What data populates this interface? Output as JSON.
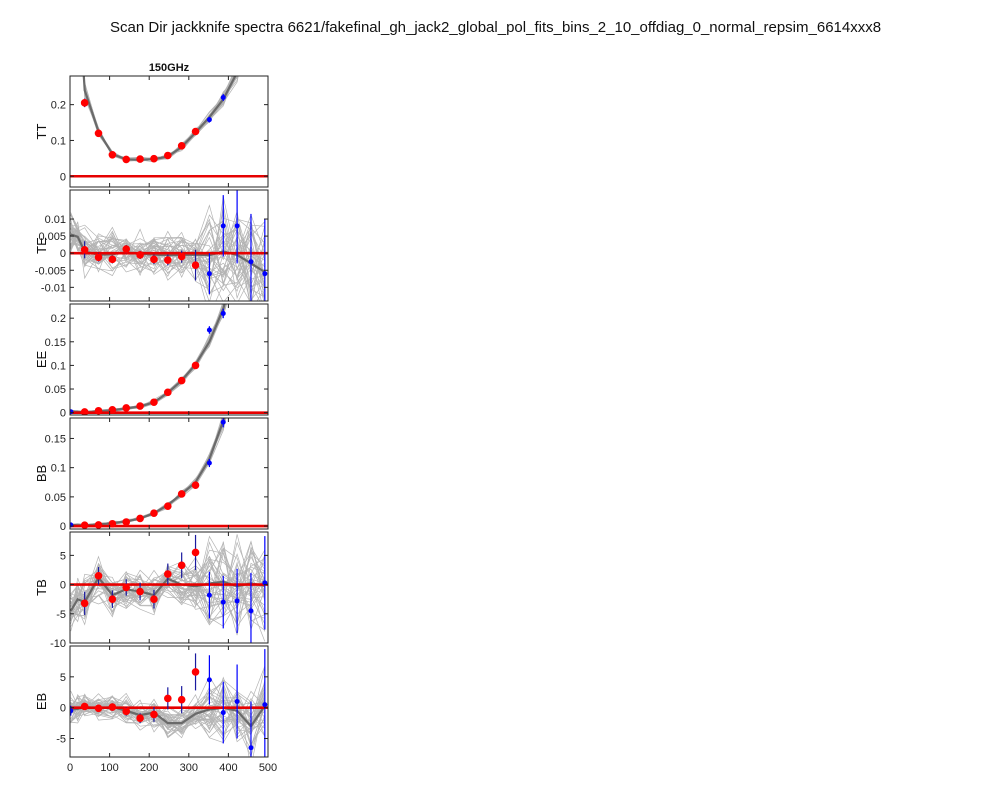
{
  "title": "Scan Dir jackknife spectra 6621/fakefinal_gh_jack2_global_pol_fits_bins_2_10_offdiag_0_normal_repsim_6614xxx8",
  "panel_title": "150GHz",
  "colors": {
    "sim_lines": "#b4b4b4",
    "sim_mean": "#6a6a6a",
    "zero_line": "#e60000",
    "data_in_range": "#ff0000",
    "data_out_range": "#0000ff"
  },
  "x_axis": {
    "xlim": [
      0,
      500
    ],
    "ticks": [
      0,
      100,
      200,
      300,
      400,
      500
    ]
  },
  "chart_data": [
    {
      "type": "line",
      "spectrum": "TT",
      "ylabel": "TT",
      "ylim": [
        -0.03,
        0.28
      ],
      "yticks": [
        "0",
        "0.1",
        "0.2"
      ],
      "ytick_values": [
        0,
        0.1,
        0.2
      ],
      "sim_mean": {
        "x": [
          19.5,
          37,
          72,
          107,
          142,
          177,
          212,
          247,
          282,
          317,
          352,
          387,
          422,
          457
        ],
        "y": [
          0.55,
          0.24,
          0.125,
          0.062,
          0.047,
          0.046,
          0.048,
          0.055,
          0.082,
          0.122,
          0.165,
          0.215,
          0.29,
          0.45
        ]
      },
      "sim_spread": 0.006,
      "points": [
        {
          "x": 37,
          "y": 0.205,
          "err": 0.012,
          "in_range": true
        },
        {
          "x": 72,
          "y": 0.12,
          "err": 0.008,
          "in_range": true
        },
        {
          "x": 107,
          "y": 0.06,
          "err": 0.004,
          "in_range": true
        },
        {
          "x": 142,
          "y": 0.047,
          "err": 0.003,
          "in_range": true
        },
        {
          "x": 177,
          "y": 0.048,
          "err": 0.003,
          "in_range": true
        },
        {
          "x": 212,
          "y": 0.049,
          "err": 0.003,
          "in_range": true
        },
        {
          "x": 247,
          "y": 0.058,
          "err": 0.004,
          "in_range": true
        },
        {
          "x": 282,
          "y": 0.085,
          "err": 0.005,
          "in_range": true
        },
        {
          "x": 317,
          "y": 0.125,
          "err": 0.006,
          "in_range": true
        },
        {
          "x": 352,
          "y": 0.158,
          "err": 0.008,
          "in_range": false
        },
        {
          "x": 387,
          "y": 0.22,
          "err": 0.01,
          "in_range": false
        }
      ]
    },
    {
      "type": "line",
      "spectrum": "TE",
      "ylabel": "TE",
      "ylim": [
        -0.014,
        0.0185
      ],
      "yticks": [
        "-0.01",
        "-0.005",
        "0",
        "0.005",
        "0.01"
      ],
      "ytick_values": [
        -0.01,
        -0.005,
        0,
        0.005,
        0.01
      ],
      "sim_mean": {
        "x": [
          2,
          19.5,
          37,
          72,
          107,
          142,
          177,
          212,
          247,
          282,
          317,
          352,
          387,
          422,
          457,
          492
        ],
        "y": [
          0.0055,
          0.0048,
          0.0005,
          -0.0005,
          -0.0003,
          0.0002,
          -0.0002,
          -0.0004,
          -0.0006,
          -0.0005,
          -0.0004,
          -0.0006,
          0.0005,
          -0.0005,
          -0.003,
          -0.0055
        ]
      },
      "sim_spread": 0.0045,
      "points": [
        {
          "x": 37,
          "y": 0.001,
          "err": 0.0025,
          "in_range": true
        },
        {
          "x": 72,
          "y": -0.0012,
          "err": 0.0013,
          "in_range": true
        },
        {
          "x": 107,
          "y": -0.0018,
          "err": 0.0012,
          "in_range": true
        },
        {
          "x": 142,
          "y": 0.0012,
          "err": 0.0012,
          "in_range": true
        },
        {
          "x": 177,
          "y": -0.0005,
          "err": 0.0012,
          "in_range": true
        },
        {
          "x": 212,
          "y": -0.0018,
          "err": 0.0014,
          "in_range": true
        },
        {
          "x": 247,
          "y": -0.002,
          "err": 0.0016,
          "in_range": true
        },
        {
          "x": 282,
          "y": -0.001,
          "err": 0.0018,
          "in_range": true
        },
        {
          "x": 317,
          "y": -0.0035,
          "err": 0.0045,
          "in_range": true
        },
        {
          "x": 352,
          "y": -0.006,
          "err": 0.006,
          "in_range": false
        },
        {
          "x": 387,
          "y": 0.008,
          "err": 0.009,
          "in_range": false
        },
        {
          "x": 422,
          "y": 0.008,
          "err": 0.011,
          "in_range": false
        },
        {
          "x": 457,
          "y": -0.0025,
          "err": 0.014,
          "in_range": false
        },
        {
          "x": 492,
          "y": -0.006,
          "err": 0.016,
          "in_range": false
        }
      ]
    },
    {
      "type": "line",
      "spectrum": "EE",
      "ylabel": "EE",
      "ylim": [
        -0.005,
        0.23
      ],
      "yticks": [
        "0",
        "0.05",
        "0.1",
        "0.15",
        "0.2"
      ],
      "ytick_values": [
        0,
        0.05,
        0.1,
        0.15,
        0.2
      ],
      "sim_mean": {
        "x": [
          2,
          19.5,
          37,
          72,
          107,
          142,
          177,
          212,
          247,
          282,
          317,
          352,
          387,
          422
        ],
        "y": [
          0.003,
          0.0015,
          0.001,
          0.003,
          0.005,
          0.009,
          0.013,
          0.022,
          0.042,
          0.068,
          0.102,
          0.15,
          0.22,
          0.33
        ]
      },
      "sim_spread": 0.005,
      "points": [
        {
          "x": 2,
          "y": 0.002,
          "err": 0.001,
          "in_range": false
        },
        {
          "x": 37,
          "y": 0.0015,
          "err": 0.001,
          "in_range": true
        },
        {
          "x": 72,
          "y": 0.004,
          "err": 0.001,
          "in_range": true
        },
        {
          "x": 107,
          "y": 0.006,
          "err": 0.0015,
          "in_range": true
        },
        {
          "x": 142,
          "y": 0.01,
          "err": 0.002,
          "in_range": true
        },
        {
          "x": 177,
          "y": 0.014,
          "err": 0.002,
          "in_range": true
        },
        {
          "x": 212,
          "y": 0.022,
          "err": 0.003,
          "in_range": true
        },
        {
          "x": 247,
          "y": 0.043,
          "err": 0.004,
          "in_range": true
        },
        {
          "x": 282,
          "y": 0.068,
          "err": 0.005,
          "in_range": true
        },
        {
          "x": 317,
          "y": 0.1,
          "err": 0.006,
          "in_range": true
        },
        {
          "x": 352,
          "y": 0.175,
          "err": 0.008,
          "in_range": false
        },
        {
          "x": 387,
          "y": 0.21,
          "err": 0.01,
          "in_range": false
        }
      ]
    },
    {
      "type": "line",
      "spectrum": "BB",
      "ylabel": "BB",
      "ylim": [
        -0.005,
        0.185
      ],
      "yticks": [
        "0",
        "0.05",
        "0.1",
        "0.15"
      ],
      "ytick_values": [
        0,
        0.05,
        0.1,
        0.15
      ],
      "sim_mean": {
        "x": [
          2,
          19.5,
          37,
          72,
          107,
          142,
          177,
          212,
          247,
          282,
          317,
          352,
          387,
          422
        ],
        "y": [
          0.002,
          0.0015,
          0.0015,
          0.003,
          0.005,
          0.008,
          0.013,
          0.022,
          0.036,
          0.055,
          0.075,
          0.115,
          0.18,
          0.27
        ]
      },
      "sim_spread": 0.004,
      "points": [
        {
          "x": 2,
          "y": 0.002,
          "err": 0.001,
          "in_range": false
        },
        {
          "x": 37,
          "y": 0.0015,
          "err": 0.001,
          "in_range": true
        },
        {
          "x": 72,
          "y": 0.002,
          "err": 0.001,
          "in_range": true
        },
        {
          "x": 107,
          "y": 0.004,
          "err": 0.0015,
          "in_range": true
        },
        {
          "x": 142,
          "y": 0.007,
          "err": 0.002,
          "in_range": true
        },
        {
          "x": 177,
          "y": 0.013,
          "err": 0.002,
          "in_range": true
        },
        {
          "x": 212,
          "y": 0.022,
          "err": 0.003,
          "in_range": true
        },
        {
          "x": 247,
          "y": 0.034,
          "err": 0.004,
          "in_range": true
        },
        {
          "x": 282,
          "y": 0.055,
          "err": 0.005,
          "in_range": true
        },
        {
          "x": 317,
          "y": 0.07,
          "err": 0.006,
          "in_range": true
        },
        {
          "x": 352,
          "y": 0.108,
          "err": 0.007,
          "in_range": false
        },
        {
          "x": 387,
          "y": 0.178,
          "err": 0.009,
          "in_range": false
        }
      ]
    },
    {
      "type": "line",
      "spectrum": "TB",
      "ylabel": "TB",
      "ylim": [
        -10,
        9
      ],
      "yticks": [
        "-10",
        "-5",
        "0",
        "5"
      ],
      "ytick_values": [
        -10,
        -5,
        0,
        5
      ],
      "sim_mean": {
        "x": [
          2,
          19.5,
          37,
          72,
          107,
          142,
          177,
          212,
          247,
          282,
          317,
          352,
          387,
          422,
          457,
          492
        ],
        "y": [
          -4.5,
          -2.5,
          -3.0,
          1.2,
          -1.8,
          -0.8,
          -1.2,
          -1.8,
          1.0,
          0.0,
          -0.3,
          0.2,
          0.5,
          -0.3,
          0.2,
          -0.2
        ]
      },
      "sim_spread": 2.6,
      "points": [
        {
          "x": 37,
          "y": -3.2,
          "err": 2.0,
          "in_range": true
        },
        {
          "x": 72,
          "y": 1.5,
          "err": 1.5,
          "in_range": true
        },
        {
          "x": 107,
          "y": -2.5,
          "err": 1.5,
          "in_range": true
        },
        {
          "x": 142,
          "y": -0.5,
          "err": 1.4,
          "in_range": true
        },
        {
          "x": 177,
          "y": -1.2,
          "err": 1.5,
          "in_range": true
        },
        {
          "x": 212,
          "y": -2.5,
          "err": 1.6,
          "in_range": true
        },
        {
          "x": 247,
          "y": 1.8,
          "err": 1.8,
          "in_range": true
        },
        {
          "x": 282,
          "y": 3.3,
          "err": 2.2,
          "in_range": true
        },
        {
          "x": 317,
          "y": 5.5,
          "err": 3.0,
          "in_range": true
        },
        {
          "x": 352,
          "y": -1.8,
          "err": 4.0,
          "in_range": false
        },
        {
          "x": 387,
          "y": -3.0,
          "err": 4.5,
          "in_range": false
        },
        {
          "x": 422,
          "y": -2.8,
          "err": 5.5,
          "in_range": false
        },
        {
          "x": 457,
          "y": -4.5,
          "err": 6.5,
          "in_range": false
        },
        {
          "x": 492,
          "y": 0.3,
          "err": 8.0,
          "in_range": false
        }
      ]
    },
    {
      "type": "line",
      "spectrum": "EB",
      "ylabel": "EB",
      "ylim": [
        -8,
        10
      ],
      "yticks": [
        "-5",
        "0",
        "5"
      ],
      "ytick_values": [
        -5,
        0,
        5
      ],
      "sim_mean": {
        "x": [
          2,
          19.5,
          37,
          72,
          107,
          142,
          177,
          212,
          247,
          282,
          317,
          352,
          387,
          422,
          457,
          492
        ],
        "y": [
          -0.3,
          -0.2,
          0.1,
          -0.1,
          0.1,
          -0.5,
          -1.2,
          -0.8,
          -2.5,
          -2.5,
          -1.0,
          -0.3,
          0.0,
          -0.5,
          -3.0,
          0.3
        ]
      },
      "sim_spread": 1.5,
      "points": [
        {
          "x": 2,
          "y": -0.5,
          "err": 0.8,
          "in_range": false
        },
        {
          "x": 37,
          "y": 0.2,
          "err": 0.5,
          "in_range": true
        },
        {
          "x": 72,
          "y": -0.1,
          "err": 0.5,
          "in_range": true
        },
        {
          "x": 107,
          "y": 0.1,
          "err": 0.6,
          "in_range": true
        },
        {
          "x": 142,
          "y": -0.6,
          "err": 0.7,
          "in_range": true
        },
        {
          "x": 177,
          "y": -1.7,
          "err": 0.8,
          "in_range": true
        },
        {
          "x": 212,
          "y": -1.1,
          "err": 1.2,
          "in_range": true
        },
        {
          "x": 247,
          "y": 1.5,
          "err": 1.8,
          "in_range": true
        },
        {
          "x": 282,
          "y": 1.3,
          "err": 2.2,
          "in_range": true
        },
        {
          "x": 317,
          "y": 5.8,
          "err": 3.0,
          "in_range": true
        },
        {
          "x": 352,
          "y": 4.5,
          "err": 4.0,
          "in_range": false
        },
        {
          "x": 387,
          "y": -0.8,
          "err": 5.0,
          "in_range": false
        },
        {
          "x": 422,
          "y": 1.0,
          "err": 6.0,
          "in_range": false
        },
        {
          "x": 457,
          "y": -6.5,
          "err": 7.5,
          "in_range": false
        },
        {
          "x": 492,
          "y": 0.5,
          "err": 9.0,
          "in_range": false
        }
      ]
    }
  ]
}
